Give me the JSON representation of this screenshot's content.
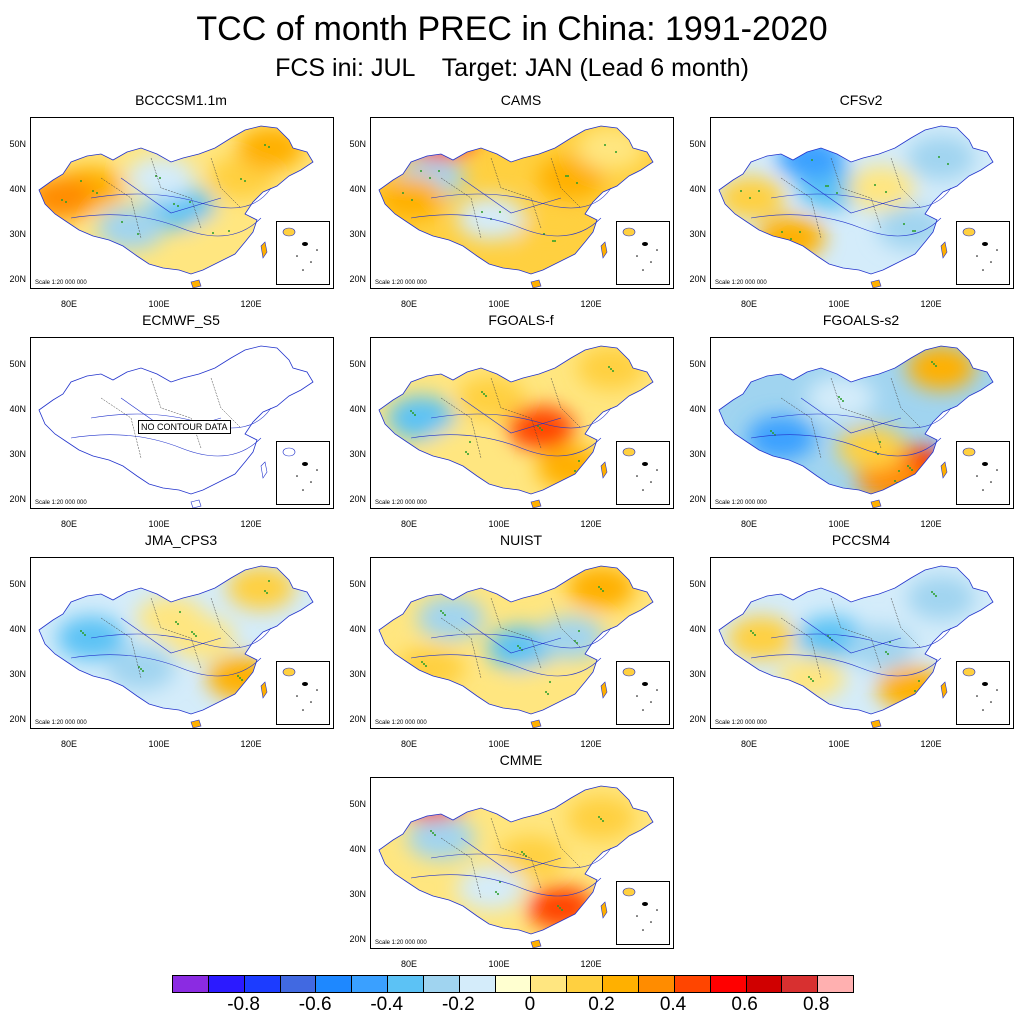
{
  "title": "TCC of month PREC in China: 1991-2020",
  "subtitle": "FCS ini: JUL    Target: JAN (Lead 6 month)",
  "panels": [
    {
      "name": "BCCCSM1.1m",
      "pattern": "mixed-warm"
    },
    {
      "name": "CAMS",
      "pattern": "warm-east"
    },
    {
      "name": "CFSv2",
      "pattern": "mixed-cool"
    },
    {
      "name": "ECMWF_S5",
      "pattern": "none",
      "no_data": "NO CONTOUR DATA"
    },
    {
      "name": "FGOALS-f",
      "pattern": "warm-center"
    },
    {
      "name": "FGOALS-s2",
      "pattern": "cool-west-warm-south"
    },
    {
      "name": "JMA_CPS3",
      "pattern": "cool-west-warm-east"
    },
    {
      "name": "NUIST",
      "pattern": "cool-center"
    },
    {
      "name": "PCCSM4",
      "pattern": "mixed-south-warm"
    },
    {
      "name": "CMME",
      "pattern": "warm-south"
    }
  ],
  "scale_text": "Scale 1:20 000 000",
  "lat_labels": [
    "50N",
    "40N",
    "30N",
    "20N"
  ],
  "lon_labels": [
    "80E",
    "100E",
    "120E"
  ],
  "colorbar": {
    "colors": [
      "#8b2be2",
      "#2b1aff",
      "#1c3cff",
      "#4169e1",
      "#1e88ff",
      "#3aa0ff",
      "#5cc2f5",
      "#a0d4f0",
      "#d4ecfa",
      "#ffffd0",
      "#ffe680",
      "#ffd040",
      "#ffb000",
      "#ff8c00",
      "#ff4500",
      "#ff0000",
      "#d00000",
      "#d83030",
      "#ffb0b0"
    ],
    "labels": [
      "-0.8",
      "-0.6",
      "-0.4",
      "-0.2",
      "0",
      "0.2",
      "0.4",
      "0.6",
      "0.8"
    ]
  }
}
